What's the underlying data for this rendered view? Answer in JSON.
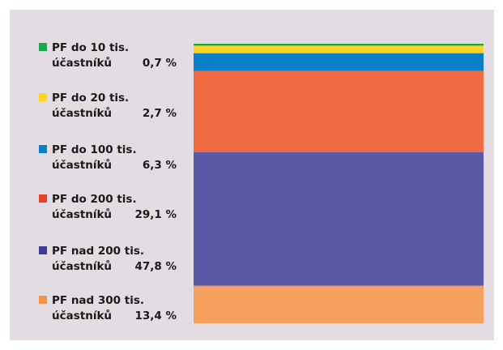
{
  "chart_data": {
    "type": "bar",
    "stacked": true,
    "series": [
      {
        "name": "PF do 10 tis. účastníků",
        "label_line1": "PF do 10 tis.",
        "label_line2": "účastníků",
        "value": 0.7,
        "value_label": "0,7 %",
        "color": "#1aa64a"
      },
      {
        "name": "PF do 20 tis. účastníků",
        "label_line1": "PF do 20 tis.",
        "label_line2": "účastníků",
        "value": 2.7,
        "value_label": "2,7 %",
        "color": "#ffd520"
      },
      {
        "name": "PF do 100 tis. účastníků",
        "label_line1": "PF do 100 tis.",
        "label_line2": "účastníků",
        "value": 6.3,
        "value_label": "6,3 %",
        "color": "#0a7fc7"
      },
      {
        "name": "PF do 200 tis. účastníků",
        "label_line1": "PF do 200 tis.",
        "label_line2": "účastníků",
        "value": 29.1,
        "value_label": "29,1 %",
        "color": "#f06a42",
        "swatch_color": "#e8412b"
      },
      {
        "name": "PF nad 200 tis. účastníků",
        "label_line1": "PF nad 200 tis.",
        "label_line2": "účastníků",
        "value": 47.8,
        "value_label": "47,8 %",
        "color": "#5a59a6",
        "swatch_color": "#3d3c94"
      },
      {
        "name": "PF nad 300 tis. účastníků",
        "label_line1": "PF nad 300 tis.",
        "label_line2": "účastníků",
        "value": 13.4,
        "value_label": "13,4 %",
        "color": "#f6a05e",
        "swatch_color": "#f39540"
      }
    ],
    "ylim": [
      0,
      100
    ],
    "grid": false,
    "legend": "left"
  }
}
